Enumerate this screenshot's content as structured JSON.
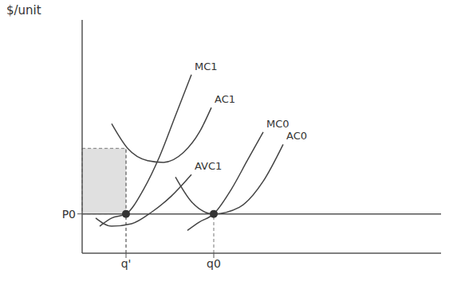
{
  "chart_data": {
    "type": "line",
    "y_label": "$/unit",
    "xlim": [
      0,
      9
    ],
    "ylim": [
      0,
      9.5
    ],
    "xticks": [
      {
        "value": 1.1,
        "label": "q'"
      },
      {
        "value": 3.3,
        "label": "q0"
      }
    ],
    "yticks": [
      {
        "value": 1.6,
        "label": "P0"
      }
    ],
    "series": [
      {
        "name": "MC1",
        "color": "#444444",
        "x": [
          0.44,
          0.74,
          1.1,
          1.54,
          1.94,
          2.34,
          2.74
        ],
        "values": [
          1.1,
          1.43,
          1.6,
          2.6,
          3.93,
          5.6,
          7.27
        ]
      },
      {
        "name": "AC1",
        "color": "#444444",
        "x": [
          0.74,
          1.14,
          1.64,
          2.04,
          2.54,
          2.94,
          3.24
        ],
        "values": [
          5.27,
          4.27,
          3.77,
          3.7,
          4.1,
          4.93,
          5.93
        ]
      },
      {
        "name": "AVC1",
        "color": "#444444",
        "x": [
          0.34,
          0.74,
          1.24,
          1.74,
          2.24,
          2.74
        ],
        "values": [
          1.43,
          1.1,
          1.2,
          1.67,
          2.33,
          3.2
        ]
      },
      {
        "name": "MC0",
        "color": "#444444",
        "x": [
          2.64,
          2.94,
          3.3,
          3.74,
          4.14,
          4.54
        ],
        "values": [
          0.93,
          1.27,
          1.6,
          2.6,
          3.77,
          4.93
        ]
      },
      {
        "name": "AC0",
        "color": "#444444",
        "x": [
          2.34,
          2.74,
          3.3,
          3.94,
          4.54,
          5.04
        ],
        "values": [
          3.1,
          2.1,
          1.6,
          1.87,
          2.93,
          4.43
        ]
      }
    ],
    "points": {
      "x": [
        1.1,
        3.3
      ],
      "y": [
        1.6,
        1.6
      ]
    },
    "shaded_region": {
      "x": [
        0,
        1.1
      ],
      "y": [
        1.6,
        4.27
      ]
    }
  }
}
